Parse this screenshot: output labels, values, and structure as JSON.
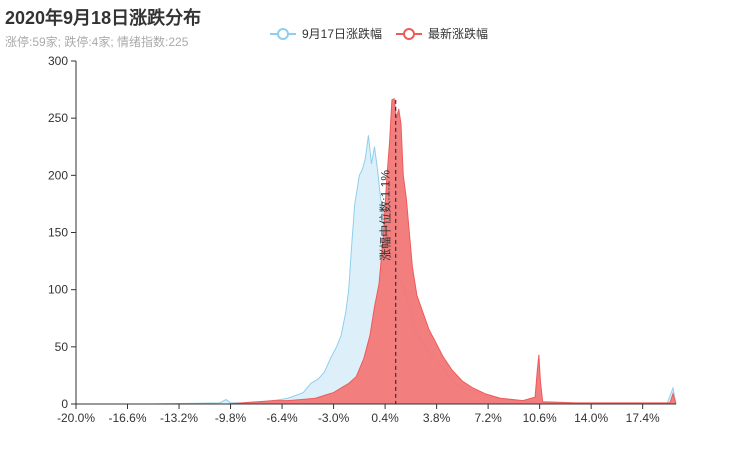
{
  "title": "2020年9月18日涨跌分布",
  "subtitle": "涨停:59家; 跌停:4家; 情绪指数:225",
  "legend": [
    {
      "name": "9月17日涨跌幅",
      "color": "#8ecfee",
      "fill": "#d9eef9"
    },
    {
      "name": "最新涨跌幅",
      "color": "#ee5a5a",
      "fill": "#f27777"
    }
  ],
  "chart_data": {
    "type": "area",
    "xlim": [
      -20.0,
      19.6
    ],
    "ylim": [
      0,
      300
    ],
    "x_ticks": [
      -20.0,
      -16.6,
      -13.2,
      -9.8,
      -6.4,
      -3.0,
      0.4,
      3.8,
      7.2,
      10.6,
      14.0,
      17.4
    ],
    "x_tick_labels": [
      "-20.0%",
      "-16.6%",
      "-13.2%",
      "-9.8%",
      "-6.4%",
      "-3.0%",
      "0.4%",
      "3.8%",
      "7.2%",
      "10.6%",
      "14.0%",
      "17.4%"
    ],
    "y_ticks": [
      0,
      50,
      100,
      150,
      200,
      250,
      300
    ],
    "median_line": {
      "x": 1.1,
      "label": "涨幅中位数:1.1%"
    },
    "series": [
      {
        "name": "9月17日涨跌幅",
        "points": [
          [
            -20.0,
            0
          ],
          [
            -15,
            0
          ],
          [
            -10.5,
            1
          ],
          [
            -10.1,
            4
          ],
          [
            -9.8,
            1
          ],
          [
            -8,
            1
          ],
          [
            -7,
            3
          ],
          [
            -6,
            5
          ],
          [
            -5,
            10
          ],
          [
            -4.5,
            18
          ],
          [
            -4,
            22
          ],
          [
            -3.6,
            28
          ],
          [
            -3.2,
            40
          ],
          [
            -2.8,
            50
          ],
          [
            -2.5,
            60
          ],
          [
            -2.2,
            80
          ],
          [
            -2.0,
            100
          ],
          [
            -1.8,
            140
          ],
          [
            -1.6,
            175
          ],
          [
            -1.3,
            200
          ],
          [
            -1.1,
            205
          ],
          [
            -0.9,
            215
          ],
          [
            -0.7,
            235
          ],
          [
            -0.5,
            210
          ],
          [
            -0.3,
            225
          ],
          [
            -0.1,
            205
          ],
          [
            0.1,
            180
          ],
          [
            0.3,
            165
          ],
          [
            0.5,
            150
          ],
          [
            0.7,
            135
          ],
          [
            0.9,
            125
          ],
          [
            1.1,
            118
          ],
          [
            1.4,
            108
          ],
          [
            1.7,
            100
          ],
          [
            2.0,
            85
          ],
          [
            2.4,
            65
          ],
          [
            2.8,
            55
          ],
          [
            3.2,
            48
          ],
          [
            3.6,
            40
          ],
          [
            4.2,
            32
          ],
          [
            4.8,
            20
          ],
          [
            5.5,
            14
          ],
          [
            6.5,
            10
          ],
          [
            7.2,
            6
          ],
          [
            8.5,
            4
          ],
          [
            10.0,
            2
          ],
          [
            10.55,
            3
          ],
          [
            11,
            1
          ],
          [
            14,
            0
          ],
          [
            19.0,
            0
          ],
          [
            19.4,
            14
          ],
          [
            19.6,
            0
          ]
        ]
      },
      {
        "name": "最新涨跌幅",
        "points": [
          [
            -20.0,
            0
          ],
          [
            -10,
            0
          ],
          [
            -8,
            2
          ],
          [
            -7,
            3
          ],
          [
            -6,
            3
          ],
          [
            -5,
            4
          ],
          [
            -4.2,
            5
          ],
          [
            -3.5,
            8
          ],
          [
            -3.0,
            10
          ],
          [
            -2.5,
            14
          ],
          [
            -2.0,
            18
          ],
          [
            -1.5,
            24
          ],
          [
            -1.0,
            40
          ],
          [
            -0.6,
            60
          ],
          [
            -0.3,
            85
          ],
          [
            0.0,
            105
          ],
          [
            0.3,
            150
          ],
          [
            0.5,
            195
          ],
          [
            0.7,
            230
          ],
          [
            0.85,
            266
          ],
          [
            1.0,
            267
          ],
          [
            1.15,
            250
          ],
          [
            1.3,
            258
          ],
          [
            1.45,
            245
          ],
          [
            1.6,
            200
          ],
          [
            1.8,
            180
          ],
          [
            2.0,
            150
          ],
          [
            2.2,
            120
          ],
          [
            2.5,
            95
          ],
          [
            2.9,
            80
          ],
          [
            3.3,
            65
          ],
          [
            3.7,
            55
          ],
          [
            4.2,
            42
          ],
          [
            4.8,
            30
          ],
          [
            5.5,
            20
          ],
          [
            6.2,
            14
          ],
          [
            7.0,
            9
          ],
          [
            8.0,
            5
          ],
          [
            9.5,
            3
          ],
          [
            10.3,
            6
          ],
          [
            10.45,
            30
          ],
          [
            10.55,
            43
          ],
          [
            10.65,
            20
          ],
          [
            10.8,
            2
          ],
          [
            13,
            1
          ],
          [
            16,
            1
          ],
          [
            19.2,
            1
          ],
          [
            19.4,
            9
          ],
          [
            19.6,
            0
          ]
        ]
      }
    ]
  }
}
